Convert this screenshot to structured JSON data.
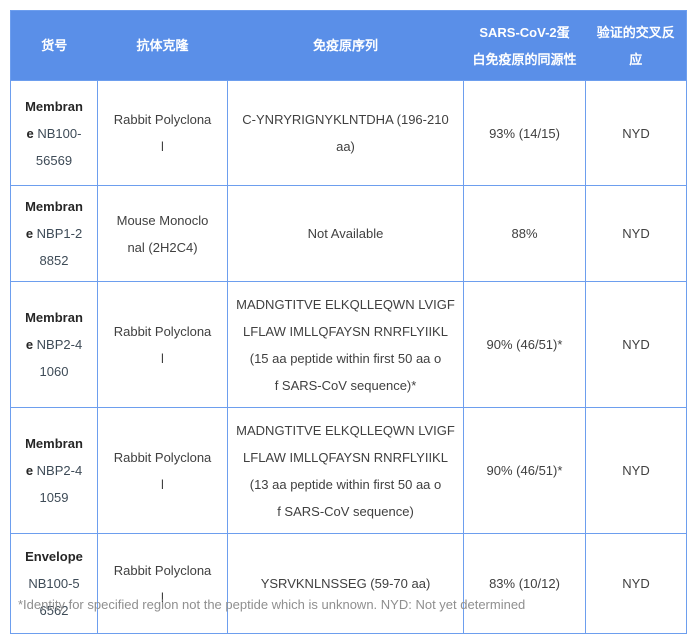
{
  "colors": {
    "header_bg": "#5a8fe8",
    "grid_border": "#6d9eee",
    "header_text": "#ffffff",
    "body_text": "#404040",
    "protein_name_text": "#262626",
    "catalog_number_text": "#3e4b57",
    "footnote_text": "#8f8f8f"
  },
  "table": {
    "columns": [
      {
        "label": "货号"
      },
      {
        "label": "抗体克隆"
      },
      {
        "label": "免疫原序列"
      },
      {
        "label": "SARS-CoV-2蛋\n白免疫原的同源性"
      },
      {
        "label": "验证的交叉反\n应"
      }
    ],
    "rows": [
      {
        "catalog": {
          "bold": "Membran\ne",
          "rest": " NB100-\n56569"
        },
        "clone": "Rabbit Polyclona\nl",
        "immunogen": "C-YNRYRIGNYKLNTDHA (196-210\naa)",
        "homology": "93% (14/15)",
        "cross_reactivity": "NYD"
      },
      {
        "catalog": {
          "bold": "Membran\ne",
          "rest": " NBP1-2\n8852"
        },
        "clone": "Mouse Monoclo\nnal (2H2C4)",
        "immunogen": "Not Available",
        "homology": "88%",
        "cross_reactivity": "NYD"
      },
      {
        "catalog": {
          "bold": "Membran\ne",
          "rest": " NBP2-4\n1060"
        },
        "clone": "Rabbit Polyclona\nl",
        "immunogen": "MADNGTITVE ELKQLLEQWN LVIGF\nLFLAW IMLLQFAYSN RNRFLYIIKL\n(15 aa peptide within first 50 aa o\nf SARS-CoV sequence)*",
        "homology": "90% (46/51)*",
        "cross_reactivity": "NYD"
      },
      {
        "catalog": {
          "bold": "Membran\ne",
          "rest": " NBP2-4\n1059"
        },
        "clone": "Rabbit Polyclona\nl",
        "immunogen": "MADNGTITVE ELKQLLEQWN LVIGF\nLFLAW IMLLQFAYSN RNRFLYIIKL\n(13 aa peptide within first 50 aa o\nf SARS-CoV sequence)",
        "homology": "90% (46/51)*",
        "cross_reactivity": "NYD"
      },
      {
        "catalog": {
          "bold": "Envelope",
          "rest": "\nNB100-5\n6562"
        },
        "clone": "Rabbit Polyclona\nl",
        "immunogen": "YSRVKNLNSSEG (59-70 aa)",
        "homology": "83% (10/12)",
        "cross_reactivity": "NYD"
      }
    ]
  },
  "footnote": "*Identity for specified region not the peptide which is unknown. NYD: Not yet determined"
}
